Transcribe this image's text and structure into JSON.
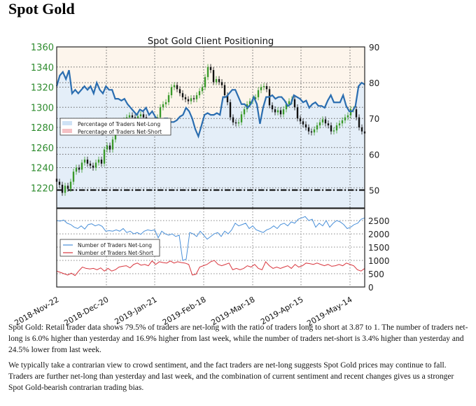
{
  "page_title": "Spot Gold",
  "chart_data": {
    "type": "line",
    "title": "Spot Gold Client Positioning",
    "x_tick_labels": [
      "2018-Nov-22",
      "2018-Dec-20",
      "2019-Jan-21",
      "2019-Feb-18",
      "2019-Mar-18",
      "2019-Apr-15",
      "2019-May-14"
    ],
    "grid": true,
    "upper_panel": {
      "left_axis": {
        "ylim": [
          1200,
          1360
        ],
        "ticks": [
          1220,
          1240,
          1260,
          1280,
          1300,
          1320,
          1340,
          1360
        ],
        "color": "#2e8b2e"
      },
      "right_axis": {
        "ylim": [
          45,
          90
        ],
        "ticks": [
          50,
          60,
          70,
          80,
          90
        ]
      },
      "reference_line": 50,
      "legend": {
        "placement": "center-left",
        "entries": [
          "Percentage of Traders Net-Long",
          "Percentage of Traders Net-Short"
        ]
      },
      "percent_net_long": [
        79,
        82,
        83,
        81,
        83.5,
        77,
        78,
        77,
        78,
        79,
        78,
        79,
        77,
        80,
        78,
        77,
        79,
        78,
        78,
        75.5,
        75.5,
        75,
        75.5,
        74,
        73,
        72,
        71,
        72.5,
        72,
        73,
        71,
        72,
        70.5,
        69.5,
        69.5,
        70,
        70,
        69,
        69,
        69.5,
        70.5,
        71,
        73,
        72,
        70,
        67,
        65,
        68,
        71,
        71.5,
        71,
        71,
        71.5,
        71,
        76,
        76,
        77,
        78,
        78,
        76,
        74,
        74,
        73,
        74,
        76,
        74,
        68.5,
        73,
        76,
        76,
        76.5,
        75.5,
        76,
        76,
        75,
        73.5,
        74,
        76.5,
        76,
        75.5,
        74.5,
        75,
        73,
        74,
        74.5,
        73.5,
        73.5,
        73,
        75,
        76.5,
        74.5,
        74.5,
        74.5,
        76.5,
        73.5,
        72,
        72,
        73.5,
        79,
        80,
        79.5
      ],
      "price_close": [
        1226,
        1223,
        1215,
        1222,
        1219,
        1226,
        1236,
        1240,
        1238,
        1245,
        1248,
        1244,
        1242,
        1240,
        1245,
        1248,
        1244,
        1258,
        1262,
        1258,
        1268,
        1275,
        1280,
        1283,
        1287,
        1290,
        1292,
        1290,
        1288,
        1291,
        1293,
        1290,
        1284,
        1282,
        1283,
        1285,
        1290,
        1300,
        1303,
        1305,
        1312,
        1320,
        1322,
        1318,
        1314,
        1310,
        1308,
        1306,
        1309,
        1308,
        1312,
        1316,
        1320,
        1330,
        1340,
        1337,
        1325,
        1328,
        1325,
        1322,
        1312,
        1305,
        1290,
        1285,
        1284,
        1285,
        1293,
        1298,
        1303,
        1306,
        1308,
        1310,
        1317,
        1320,
        1321,
        1318,
        1302,
        1298,
        1295,
        1297,
        1293,
        1298,
        1303,
        1306,
        1308,
        1300,
        1289,
        1286,
        1283,
        1280,
        1276,
        1275,
        1278,
        1282,
        1285,
        1288,
        1284,
        1282,
        1276,
        1277,
        1282,
        1284,
        1287,
        1290,
        1292,
        1298,
        1298,
        1290,
        1280,
        1276,
        1274
      ]
    },
    "lower_panel": {
      "ylim": [
        0,
        2950
      ],
      "ticks": [
        0,
        500,
        1000,
        1500,
        2000,
        2500
      ],
      "legend": {
        "placement": "center-left",
        "entries": [
          "Number of Traders Net-Long",
          "Number of Traders Net-Short"
        ]
      },
      "series": [
        {
          "name": "Number of Traders Net-Long",
          "color": "#4a90d9",
          "values": [
            2500,
            2480,
            2520,
            2400,
            2350,
            2250,
            2200,
            2300,
            2180,
            2350,
            2380,
            2300,
            2350,
            2280,
            2100,
            2120,
            2100,
            2150,
            2100,
            2200,
            2050,
            2100,
            2000,
            2050,
            1980,
            2100,
            2150,
            2120,
            2150,
            1850,
            2100,
            2000,
            1950,
            2000,
            1900,
            1950,
            1000,
            1050,
            2050,
            2000,
            1900,
            2100,
            1950,
            1800,
            1900,
            2000,
            2050,
            1900,
            2100,
            2000,
            2150,
            2400,
            2300,
            2350,
            2400,
            2200,
            2300,
            2150,
            2100,
            2050,
            2150,
            2200,
            2300,
            2200,
            2350,
            2400,
            2300,
            2450,
            2400,
            2550,
            2600,
            2650,
            2500,
            2550,
            2250,
            2400,
            2300,
            2500,
            2250,
            2400,
            2500,
            2450,
            2350,
            2200,
            2250,
            2350,
            2400,
            2550,
            2600
          ]
        },
        {
          "name": "Number of Traders Net-Short",
          "color": "#d9363e",
          "values": [
            600,
            550,
            500,
            450,
            520,
            430,
            600,
            750,
            700,
            680,
            700,
            650,
            720,
            600,
            700,
            600,
            650,
            750,
            780,
            800,
            720,
            850,
            900,
            820,
            850,
            800,
            980,
            850,
            950,
            920,
            900,
            980,
            900,
            950,
            920,
            900,
            850,
            450,
            480,
            750,
            800,
            850,
            950,
            1000,
            850,
            800,
            850,
            900,
            650,
            700,
            650,
            700,
            800,
            750,
            850,
            700,
            650,
            950,
            800,
            700,
            750,
            700,
            750,
            800,
            700,
            850,
            750,
            800,
            900,
            880,
            850,
            900,
            850,
            800,
            850,
            780,
            800,
            850,
            800,
            900,
            850,
            800,
            650,
            600,
            700
          ]
        }
      ]
    }
  },
  "paragraphs": [
    "Spot Gold: Retail trader data shows 79.5% of traders are net-long with the ratio of traders long to short at 3.87 to 1. The number of traders net-long is 6.0% higher than yesterday and 16.9% higher from last week, while the number of traders net-short is 3.4% higher than yesterday and 24.5% lower from last week.",
    "We typically take a contrarian view to crowd sentiment, and the fact traders are net-long suggests Spot Gold prices may continue to fall. Traders are further net-long than yesterday and last week, and the combination of current sentiment and recent changes gives us a stronger Spot Gold-bearish contrarian trading bias."
  ]
}
